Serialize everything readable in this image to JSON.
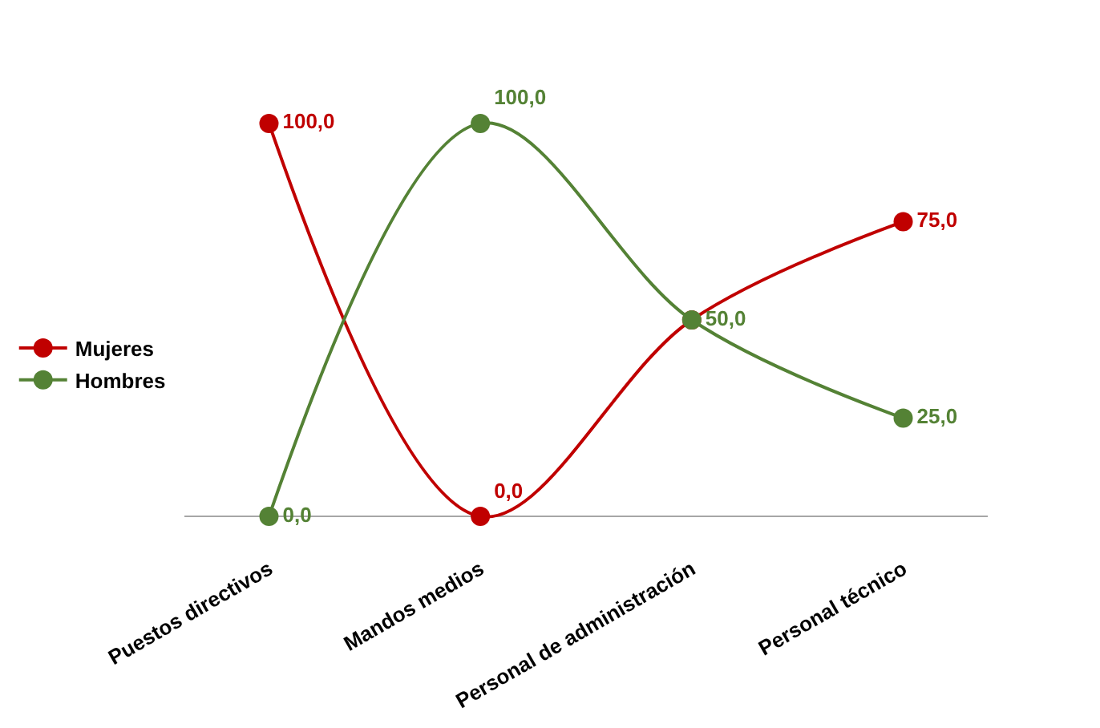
{
  "chart_data": {
    "type": "line",
    "categories": [
      "Puestos directivos",
      "Mandos medios",
      "Personal de administración",
      "Personal técnico"
    ],
    "series": [
      {
        "name": "Mujeres",
        "color": "#c00000",
        "values": [
          100,
          0,
          50,
          75
        ],
        "value_labels": [
          "100,0",
          "0,0",
          null,
          "75,0"
        ]
      },
      {
        "name": "Hombres",
        "color": "#548235",
        "values": [
          0,
          100,
          50,
          25
        ],
        "value_labels": [
          "0,0",
          "100,0",
          "50,0",
          "25,0"
        ]
      }
    ],
    "legend": "left",
    "marker": "circle",
    "line_style": "solid",
    "grid": false
  }
}
